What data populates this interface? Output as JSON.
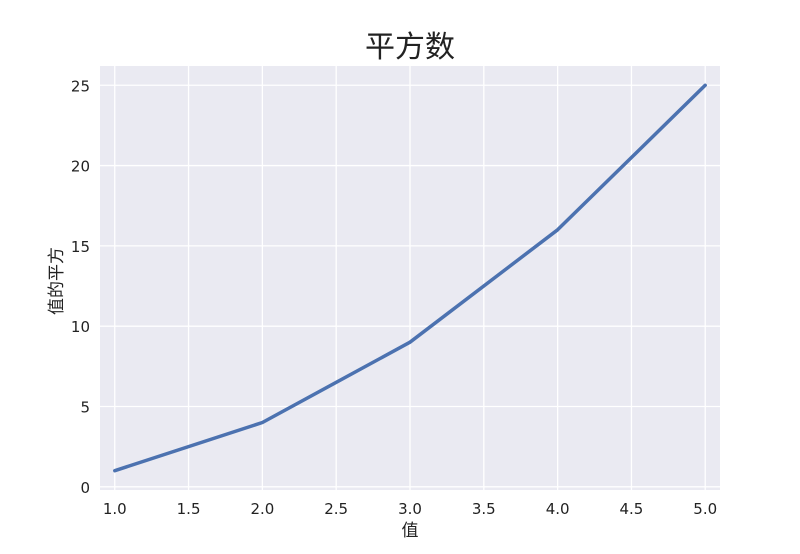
{
  "chart_data": {
    "type": "line",
    "title": "平方数",
    "xlabel": "值",
    "ylabel": "值的平方",
    "x": [
      1,
      2,
      3,
      4,
      5
    ],
    "series": [
      {
        "values": [
          1,
          4,
          9,
          16,
          25
        ],
        "color": "#4c72b0"
      }
    ],
    "xlim": [
      0.9,
      5.1
    ],
    "ylim": [
      -0.2,
      26.2
    ],
    "xticks": [
      1.0,
      1.5,
      2.0,
      2.5,
      3.0,
      3.5,
      4.0,
      4.5,
      5.0
    ],
    "xtick_labels": [
      "1.0",
      "1.5",
      "2.0",
      "2.5",
      "3.0",
      "3.5",
      "4.0",
      "4.5",
      "5.0"
    ],
    "yticks": [
      0,
      5,
      10,
      15,
      20,
      25
    ],
    "ytick_labels": [
      "0",
      "5",
      "10",
      "15",
      "20",
      "25"
    ],
    "grid": true,
    "background_color": "#eaeaf2",
    "grid_color": "#ffffff"
  }
}
